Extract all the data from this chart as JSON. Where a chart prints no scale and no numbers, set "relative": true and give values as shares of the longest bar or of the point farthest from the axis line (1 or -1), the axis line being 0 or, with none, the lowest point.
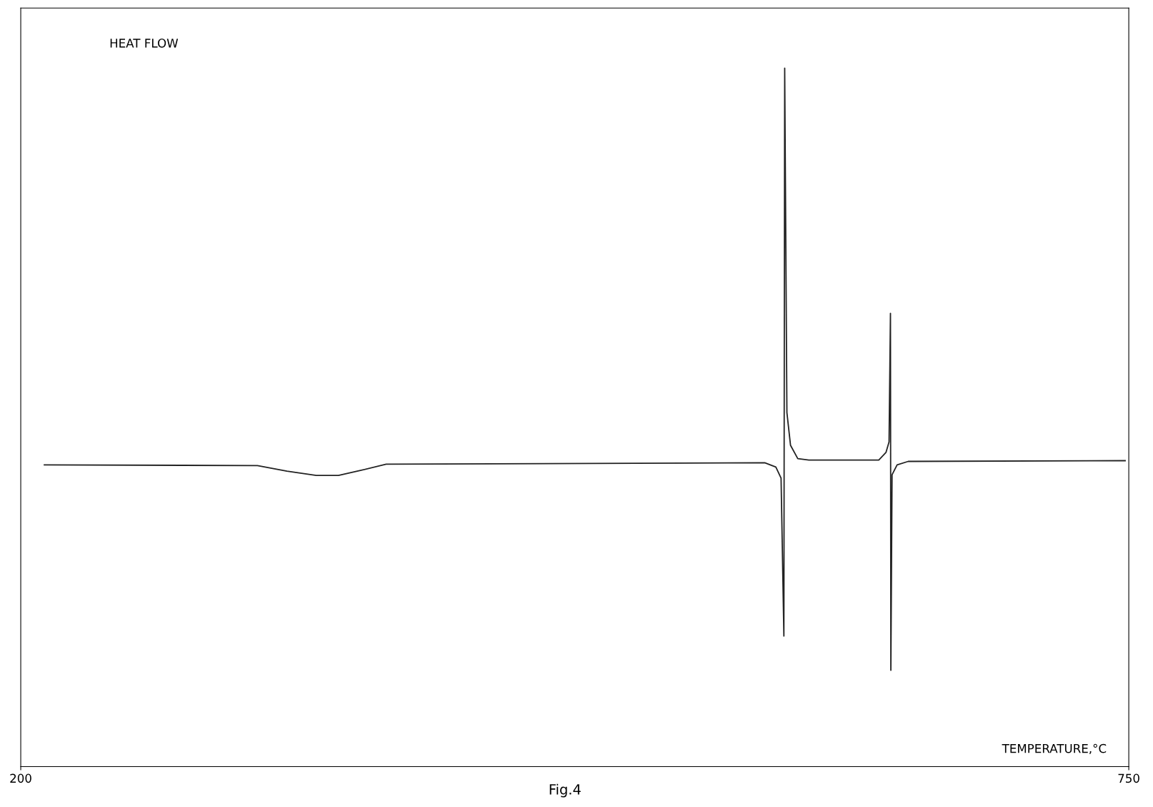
{
  "chart_data": {
    "type": "line",
    "relative": true,
    "ylabel": "HEAT FLOW",
    "xlabel": "TEMPERATURE,°C",
    "annotations": [
      "Fig.4"
    ],
    "xlim": [
      200,
      750
    ],
    "xticks": [
      200,
      750
    ],
    "grid": false,
    "legend": false,
    "marker": "none",
    "line_style": "solid",
    "series": [
      {
        "color": "#222222",
        "x": [
          211.7,
          317.5,
          332.1,
          346.7,
          357.7,
          368.6,
          381.4,
          569.3,
          574.8,
          577.4,
          578.8,
          579.2,
          580.3,
          582.1,
          585.7,
          591.2,
          625.9,
          629.5,
          631.0,
          631.7,
          631.9,
          632.5,
          635.0,
          640.5,
          748.2
        ],
        "values": [
          0.432,
          0.431,
          0.423,
          0.417,
          0.417,
          0.424,
          0.433,
          0.435,
          0.429,
          0.413,
          0.187,
          1.0,
          0.507,
          0.46,
          0.441,
          0.439,
          0.439,
          0.45,
          0.465,
          0.649,
          0.138,
          0.418,
          0.432,
          0.437,
          0.438
        ]
      }
    ]
  }
}
